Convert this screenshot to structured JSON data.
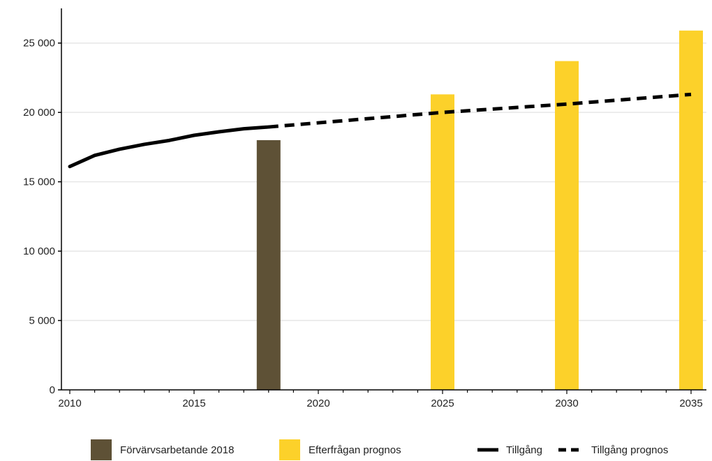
{
  "chart_data": {
    "type": "bar",
    "title": "",
    "xlabel": "",
    "ylabel": "",
    "xlim": [
      2010,
      2035
    ],
    "ylim": [
      0,
      27500
    ],
    "x_ticks": [
      {
        "value": 2010,
        "label": "2010"
      },
      {
        "value": 2015,
        "label": "2015"
      },
      {
        "value": 2020,
        "label": "2020"
      },
      {
        "value": 2025,
        "label": "2025"
      },
      {
        "value": 2030,
        "label": "2030"
      },
      {
        "value": 2035,
        "label": "2035"
      }
    ],
    "y_ticks": [
      {
        "value": 0,
        "label": "0"
      },
      {
        "value": 5000,
        "label": "5 000"
      },
      {
        "value": 10000,
        "label": "10 000"
      },
      {
        "value": 15000,
        "label": "15 000"
      },
      {
        "value": 20000,
        "label": "20 000"
      },
      {
        "value": 25000,
        "label": "25 000"
      }
    ],
    "grid": true,
    "legend_position": "bottom",
    "bars": [
      {
        "series": "Förvärvsarbetande 2018",
        "x": 2018,
        "value": 18000
      },
      {
        "series": "Efterfrågan prognos",
        "x": 2025,
        "value": 21300
      },
      {
        "series": "Efterfrågan prognos",
        "x": 2030,
        "value": 23700
      },
      {
        "series": "Efterfrågan prognos",
        "x": 2035,
        "value": 25900
      }
    ],
    "lines": [
      {
        "name": "Tillgång",
        "style": "solid",
        "x": [
          2010,
          2011,
          2012,
          2013,
          2014,
          2015,
          2016,
          2017,
          2018
        ],
        "y": [
          16100,
          16900,
          17350,
          17700,
          17980,
          18350,
          18600,
          18820,
          18950
        ]
      },
      {
        "name": "Tillgång prognos",
        "style": "dashed",
        "x": [
          2018,
          2025,
          2030,
          2035
        ],
        "y": [
          18950,
          20000,
          20600,
          21300
        ]
      }
    ],
    "legend": [
      {
        "label": "Förvärvsarbetande 2018",
        "kind": "swatch",
        "color": "#5e5136"
      },
      {
        "label": "Efterfrågan prognos",
        "kind": "swatch",
        "color": "#fcd12a"
      },
      {
        "label": "Tillgång",
        "kind": "line",
        "color": "#000000"
      },
      {
        "label": "Tillgång prognos",
        "kind": "dashed",
        "color": "#000000"
      }
    ],
    "colors": {
      "Förvärvsarbetande 2018": "#5e5136",
      "Efterfrågan prognos": "#fcd12a",
      "line": "#000000",
      "grid": "#e6e6e6",
      "axis": "#000000"
    }
  }
}
